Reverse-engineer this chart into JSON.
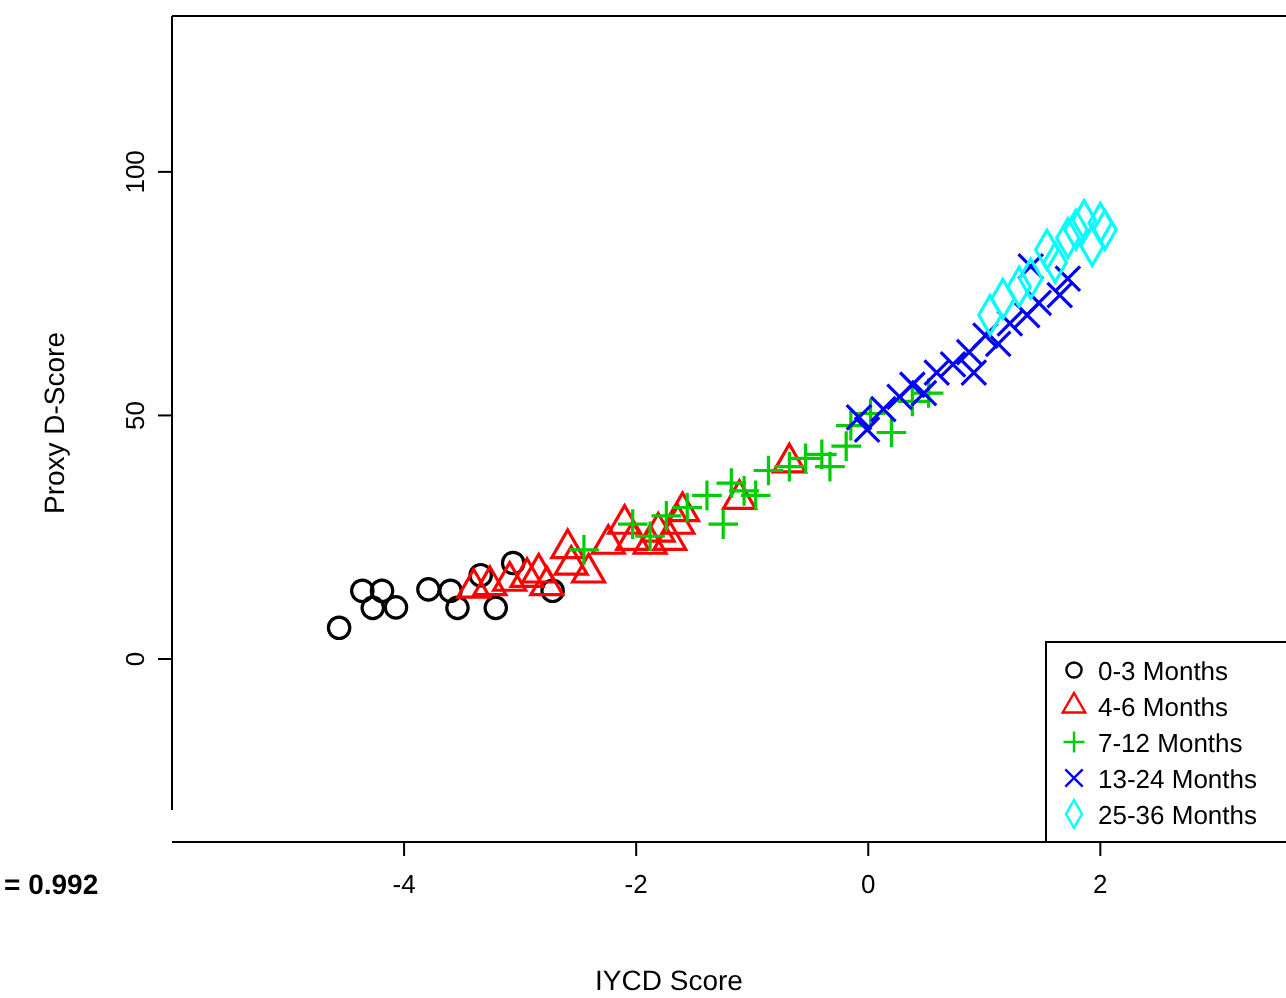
{
  "chart_data": {
    "type": "scatter",
    "xlabel": "IYCD Score",
    "ylabel": "Proxy D-Score",
    "xlim": [
      -6,
      3.6
    ],
    "ylim": [
      -31,
      132
    ],
    "xticks": [
      -4,
      -2,
      0,
      2
    ],
    "yticks": [
      0,
      50,
      100
    ],
    "grid": false,
    "legend": "bottom right",
    "annotations": [
      "= 0.992"
    ],
    "series": [
      {
        "name": "0-3 Months",
        "color": "#000000",
        "marker": "circle",
        "x": [
          -4.56,
          -4.36,
          -4.19,
          -4.27,
          -4.07,
          -3.79,
          -3.6,
          -3.54,
          -3.34,
          -3.21,
          -3.06,
          -2.72
        ],
        "values": [
          6.4,
          14.0,
          14.0,
          10.5,
          10.6,
          14.3,
          14.0,
          10.5,
          17.2,
          10.5,
          19.7,
          14.0
        ]
      },
      {
        "name": "4-6 Months",
        "color": "#ff0000",
        "marker": "triangle",
        "x": [
          -3.4,
          -3.26,
          -3.09,
          -2.94,
          -2.84,
          -2.77,
          -2.59,
          -2.56,
          -2.41,
          -2.24,
          -2.1,
          -2.03,
          -1.88,
          -1.81,
          -1.71,
          -1.64,
          -1.6,
          -1.11,
          -0.68
        ],
        "values": [
          14.6,
          15.1,
          16.0,
          16.8,
          17.7,
          15.1,
          22.7,
          19.3,
          17.7,
          23.6,
          27.7,
          24.4,
          23.6,
          26.1,
          24.4,
          27.7,
          30.3,
          32.8,
          40.3
        ]
      },
      {
        "name": "7-12 Months",
        "color": "#00cd00",
        "marker": "cross",
        "x": [
          -2.45,
          -2.03,
          -1.88,
          -1.74,
          -1.56,
          -1.39,
          -1.25,
          -1.18,
          -1.07,
          -0.97,
          -0.86,
          -0.68,
          -0.54,
          -0.4,
          -0.33,
          -0.19,
          -0.15,
          0.02,
          0.2,
          0.38,
          0.52
        ],
        "values": [
          22.4,
          27.7,
          25.2,
          29.4,
          31.1,
          33.6,
          27.7,
          36.1,
          34.5,
          33.6,
          38.7,
          39.5,
          41.2,
          42.0,
          39.5,
          43.7,
          47.9,
          50.4,
          46.5,
          52.9,
          54.6
        ]
      },
      {
        "name": "13-24 Months",
        "color": "#0000ff",
        "marker": "x",
        "x": [
          -0.08,
          -0.01,
          0.13,
          0.27,
          0.38,
          0.48,
          0.59,
          0.73,
          0.87,
          0.91,
          1.01,
          1.12,
          1.22,
          1.37,
          1.47,
          1.65,
          1.72,
          1.4
        ],
        "values": [
          49.6,
          47.1,
          51.3,
          53.8,
          56.3,
          54.6,
          58.8,
          60.5,
          63.0,
          58.8,
          66.4,
          64.7,
          68.9,
          70.6,
          73.1,
          74.7,
          78.1,
          80.6
        ]
      },
      {
        "name": "25-36 Months",
        "color": "#00ffff",
        "marker": "diamond",
        "x": [
          1.05,
          1.16,
          1.3,
          1.4,
          1.54,
          1.61,
          1.72,
          1.79,
          1.86,
          2.0,
          2.04,
          1.93
        ],
        "values": [
          70.6,
          73.9,
          76.4,
          78.1,
          84.0,
          81.4,
          86.4,
          88.1,
          90.1,
          89.5,
          88.1,
          84.8
        ]
      }
    ]
  }
}
